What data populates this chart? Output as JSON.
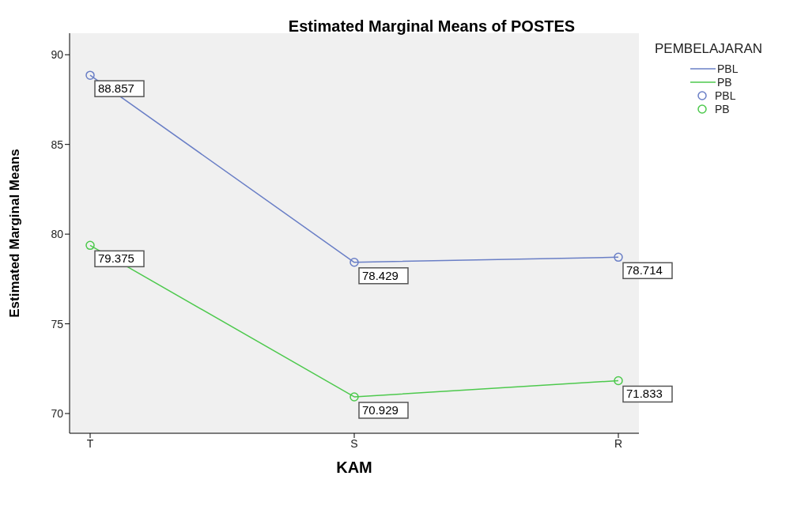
{
  "chart_data": {
    "type": "line",
    "title": "Estimated Marginal Means of POSTES",
    "xlabel": "KAM",
    "ylabel": "Estimated Marginal Means",
    "legend_title": "PEMBELAJARAN",
    "categories": [
      "T",
      "S",
      "R"
    ],
    "series": [
      {
        "name": "PBL",
        "color": "#6a7fc6",
        "values": [
          88.857,
          78.429,
          78.714
        ]
      },
      {
        "name": "PB",
        "color": "#4dc94d",
        "values": [
          79.375,
          70.929,
          71.833
        ]
      }
    ],
    "ylim": [
      68.9,
      91.2
    ],
    "yticks": [
      70,
      75,
      80,
      85,
      90
    ],
    "grid": false,
    "legend": "top right",
    "marker": "circle",
    "line_style": "solid",
    "data_labels": true
  }
}
